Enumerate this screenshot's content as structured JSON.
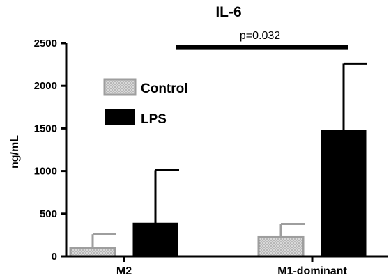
{
  "chart_data": {
    "type": "bar",
    "title": "IL-6",
    "xlabel": "",
    "ylabel": "ng/mL",
    "ylim": [
      0,
      2500
    ],
    "yticks": [
      "0",
      "500",
      "1000",
      "1500",
      "2000",
      "2500"
    ],
    "categories": [
      "M2",
      "M1-dominant"
    ],
    "series": [
      {
        "name": "Control",
        "values": [
          100,
          225
        ],
        "error_upper": [
          160,
          155
        ],
        "fill": "#d3d3d3",
        "stroke": "#9e9e9e",
        "pattern": "dotted"
      },
      {
        "name": "LPS",
        "values": [
          390,
          1475
        ],
        "error_upper": [
          620,
          785
        ],
        "fill": "#000000",
        "stroke": "#000000",
        "pattern": "solid"
      }
    ],
    "annotation": {
      "text": "p=0.032",
      "level": 2450
    },
    "legend_position": "top-left"
  }
}
